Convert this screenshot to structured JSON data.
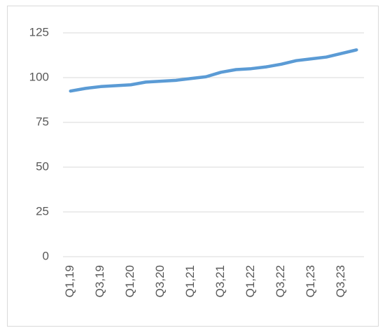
{
  "chart_data": {
    "type": "line",
    "categories": [
      "Q1,19",
      null,
      "Q3,19",
      null,
      "Q1,20",
      null,
      "Q3,20",
      null,
      "Q1,21",
      null,
      "Q3,21",
      null,
      "Q1,22",
      null,
      "Q3,22",
      null,
      "Q1,23",
      null,
      "Q3,23",
      null
    ],
    "series": [
      {
        "color": "#5b9bd5",
        "values": [
          92.5,
          94,
          95,
          95.5,
          96,
          97.5,
          98,
          98.5,
          99.5,
          100.5,
          103,
          104.5,
          105,
          106,
          107.5,
          109.5,
          110.5,
          111.5,
          113.5,
          115.5
        ]
      }
    ],
    "ylim": [
      0,
      125
    ],
    "yticks": [
      0,
      25,
      50,
      75,
      100,
      125
    ],
    "grid": true
  }
}
